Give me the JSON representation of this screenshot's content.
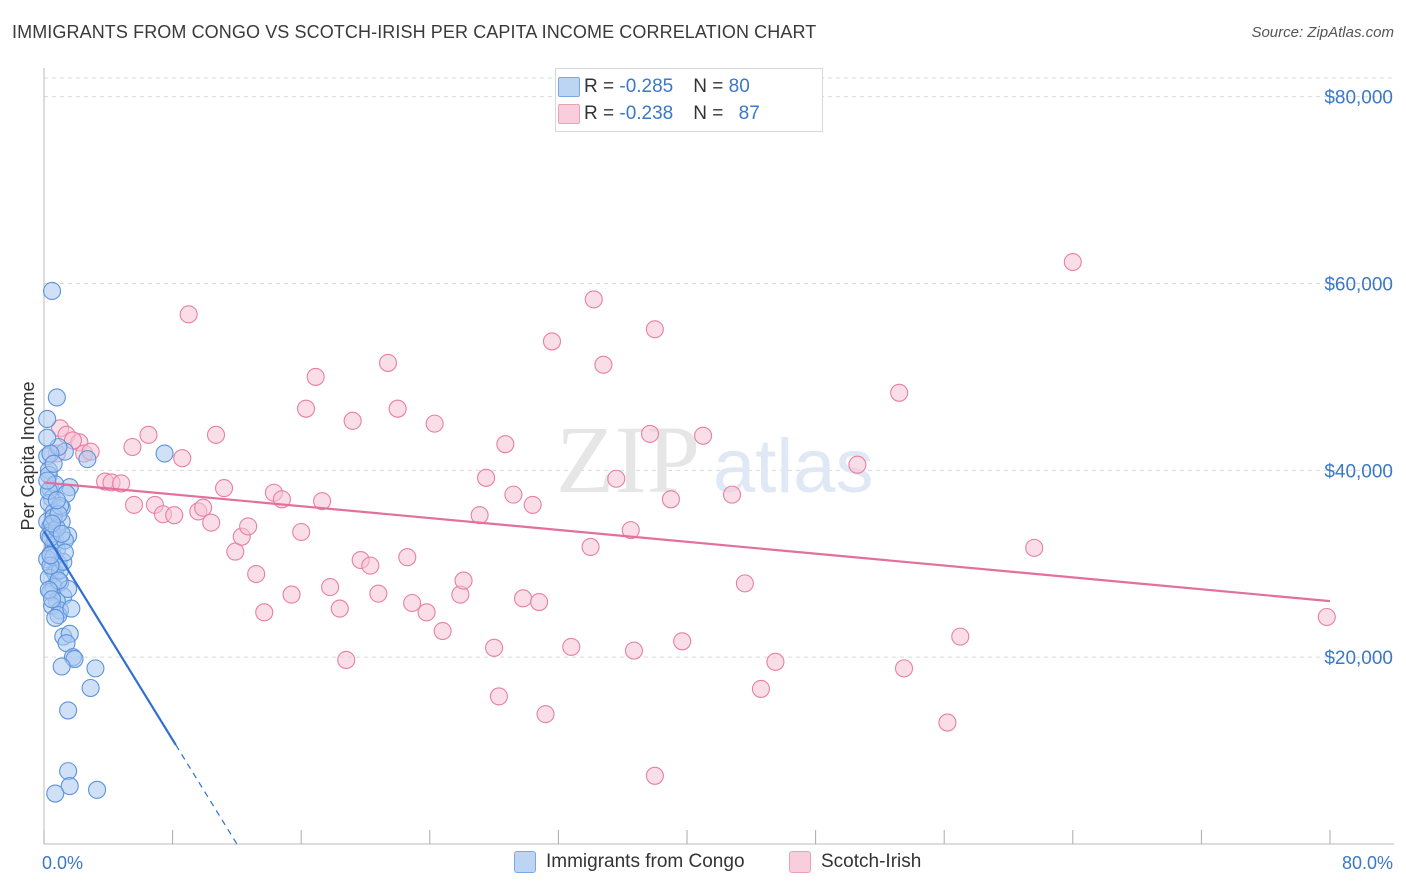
{
  "header": {
    "title": "IMMIGRANTS FROM CONGO VS SCOTCH-IRISH PER CAPITA INCOME CORRELATION CHART",
    "source": "Source: ZipAtlas.com"
  },
  "watermark": {
    "zip": "ZIP",
    "atlas": "atlas"
  },
  "legend": {
    "rows": [
      {
        "r_label": "R = ",
        "r_value": "-0.285",
        "n_label": "N = ",
        "n_value": "80",
        "color": "#a9c8f0"
      },
      {
        "r_label": "R = ",
        "r_value": "-0.238",
        "n_label": "N = ",
        "n_value": "87",
        "color": "#f6b8cb"
      }
    ]
  },
  "bottom_legend": {
    "series1": "Immigrants from Congo",
    "series2": "Scotch-Irish"
  },
  "colors": {
    "blue_fill": "#a9c8f0",
    "blue_stroke": "#5b93dc",
    "blue_line": "#2f6fd1",
    "pink_fill": "#f6c3d3",
    "pink_stroke": "#e87fa4",
    "pink_line": "#e2709b",
    "grid": "#d9d9d9",
    "tick_text": "#3a78c9"
  },
  "chart_data": {
    "type": "scatter",
    "ylabel": "Per Capita Income",
    "xlim": [
      0,
      80
    ],
    "ylim": [
      0,
      82000
    ],
    "y_ticks": [
      20000,
      40000,
      60000,
      80000
    ],
    "y_tick_labels": [
      "$20,000",
      "$40,000",
      "$60,000",
      "$80,000"
    ],
    "x_tick_labels": [
      "0.0%",
      "80.0%"
    ],
    "grid": "horizontal dashed",
    "series": [
      {
        "name": "Immigrants from Congo",
        "color": "#a9c8f0",
        "trend": {
          "x0": 0,
          "y0": 33500,
          "x_solid_end": 8.2,
          "x1": 12.0,
          "y1": 0
        },
        "points": [
          [
            0.2,
            41500
          ],
          [
            0.3,
            40000
          ],
          [
            0.4,
            38000
          ],
          [
            0.5,
            37000
          ],
          [
            0.3,
            36500
          ],
          [
            0.6,
            35500
          ],
          [
            0.2,
            34500
          ],
          [
            0.4,
            34000
          ],
          [
            0.5,
            33500
          ],
          [
            0.3,
            33000
          ],
          [
            0.7,
            32500
          ],
          [
            0.6,
            32000
          ],
          [
            0.8,
            31500
          ],
          [
            0.4,
            31000
          ],
          [
            0.2,
            30500
          ],
          [
            0.9,
            30000
          ],
          [
            0.5,
            29500
          ],
          [
            0.7,
            29000
          ],
          [
            0.3,
            28500
          ],
          [
            1.0,
            28000
          ],
          [
            0.6,
            27500
          ],
          [
            0.4,
            27000
          ],
          [
            1.2,
            26500
          ],
          [
            0.8,
            26000
          ],
          [
            0.5,
            25500
          ],
          [
            1.0,
            25000
          ],
          [
            0.9,
            24500
          ],
          [
            1.5,
            33000
          ],
          [
            1.3,
            32500
          ],
          [
            1.1,
            34500
          ],
          [
            0.2,
            45500
          ],
          [
            0.8,
            47800
          ],
          [
            0.5,
            59200
          ],
          [
            1.3,
            42000
          ],
          [
            0.9,
            42500
          ],
          [
            0.4,
            41800
          ],
          [
            1.6,
            38200
          ],
          [
            0.3,
            39500
          ],
          [
            0.7,
            38500
          ],
          [
            1.1,
            36000
          ],
          [
            0.6,
            35000
          ],
          [
            1.4,
            37500
          ],
          [
            1.0,
            29300
          ],
          [
            1.5,
            27300
          ],
          [
            1.7,
            25200
          ],
          [
            1.2,
            22200
          ],
          [
            1.6,
            22500
          ],
          [
            1.4,
            21500
          ],
          [
            1.8,
            20000
          ],
          [
            1.9,
            19800
          ],
          [
            1.1,
            19000
          ],
          [
            3.2,
            18800
          ],
          [
            2.9,
            16700
          ],
          [
            1.5,
            14300
          ],
          [
            1.5,
            7800
          ],
          [
            1.6,
            6200
          ],
          [
            0.7,
            5400
          ],
          [
            3.3,
            5800
          ],
          [
            7.5,
            41800
          ],
          [
            2.7,
            41200
          ],
          [
            0.2,
            43500
          ],
          [
            0.4,
            32800
          ],
          [
            0.6,
            30700
          ],
          [
            0.9,
            28200
          ],
          [
            0.3,
            27200
          ],
          [
            0.5,
            26200
          ],
          [
            0.8,
            33800
          ],
          [
            1.2,
            30200
          ],
          [
            0.4,
            29800
          ],
          [
            0.7,
            24200
          ],
          [
            1.0,
            36200
          ],
          [
            0.3,
            37800
          ],
          [
            0.6,
            40700
          ],
          [
            0.2,
            38900
          ],
          [
            0.9,
            35300
          ],
          [
            1.3,
            31200
          ],
          [
            0.5,
            34300
          ],
          [
            0.8,
            36800
          ],
          [
            0.4,
            30900
          ],
          [
            1.1,
            33200
          ]
        ]
      },
      {
        "name": "Scotch-Irish",
        "color": "#f6b8cb",
        "trend": {
          "x0": 0,
          "y0": 38700,
          "x1": 80,
          "y1": 26000
        },
        "points": [
          [
            1.0,
            44500
          ],
          [
            1.4,
            43800
          ],
          [
            2.2,
            43000
          ],
          [
            2.5,
            41800
          ],
          [
            1.8,
            43200
          ],
          [
            3.8,
            38800
          ],
          [
            4.2,
            38700
          ],
          [
            4.8,
            38600
          ],
          [
            5.5,
            42500
          ],
          [
            6.5,
            43800
          ],
          [
            5.6,
            36300
          ],
          [
            6.9,
            36300
          ],
          [
            7.4,
            35300
          ],
          [
            8.1,
            35200
          ],
          [
            8.6,
            41300
          ],
          [
            9.0,
            56700
          ],
          [
            9.6,
            35600
          ],
          [
            9.9,
            36000
          ],
          [
            10.4,
            34400
          ],
          [
            10.7,
            43800
          ],
          [
            11.2,
            38100
          ],
          [
            11.9,
            31300
          ],
          [
            12.3,
            32900
          ],
          [
            12.7,
            34000
          ],
          [
            13.2,
            28900
          ],
          [
            13.7,
            24800
          ],
          [
            14.3,
            37600
          ],
          [
            14.8,
            36900
          ],
          [
            15.4,
            26700
          ],
          [
            16.0,
            33400
          ],
          [
            16.3,
            46600
          ],
          [
            16.9,
            50000
          ],
          [
            17.3,
            36700
          ],
          [
            17.8,
            27500
          ],
          [
            18.4,
            25200
          ],
          [
            18.8,
            19700
          ],
          [
            19.2,
            45300
          ],
          [
            19.7,
            30400
          ],
          [
            20.3,
            29800
          ],
          [
            20.8,
            26800
          ],
          [
            21.4,
            51500
          ],
          [
            22.0,
            46600
          ],
          [
            22.6,
            30700
          ],
          [
            22.9,
            25800
          ],
          [
            23.8,
            24800
          ],
          [
            24.3,
            45000
          ],
          [
            24.8,
            22800
          ],
          [
            25.9,
            26700
          ],
          [
            26.1,
            28200
          ],
          [
            27.1,
            35200
          ],
          [
            27.5,
            39200
          ],
          [
            28.0,
            21000
          ],
          [
            28.3,
            15800
          ],
          [
            28.7,
            42800
          ],
          [
            29.2,
            37400
          ],
          [
            29.8,
            26300
          ],
          [
            30.4,
            36300
          ],
          [
            30.8,
            25900
          ],
          [
            31.2,
            13900
          ],
          [
            31.6,
            53800
          ],
          [
            32.8,
            21100
          ],
          [
            34.2,
            58300
          ],
          [
            34.0,
            31800
          ],
          [
            34.8,
            51300
          ],
          [
            35.6,
            39100
          ],
          [
            36.5,
            33600
          ],
          [
            36.7,
            20700
          ],
          [
            37.7,
            43900
          ],
          [
            38.0,
            55100
          ],
          [
            38.0,
            7300
          ],
          [
            39.0,
            36900
          ],
          [
            39.7,
            21700
          ],
          [
            41.0,
            43700
          ],
          [
            42.8,
            37400
          ],
          [
            43.6,
            27900
          ],
          [
            44.6,
            16600
          ],
          [
            45.5,
            19500
          ],
          [
            50.6,
            40600
          ],
          [
            53.5,
            18800
          ],
          [
            53.2,
            48300
          ],
          [
            56.2,
            13000
          ],
          [
            57.0,
            22200
          ],
          [
            61.6,
            31700
          ],
          [
            64.0,
            62300
          ],
          [
            79.8,
            24300
          ],
          [
            0.8,
            41800
          ],
          [
            2.9,
            42000
          ]
        ]
      }
    ]
  }
}
